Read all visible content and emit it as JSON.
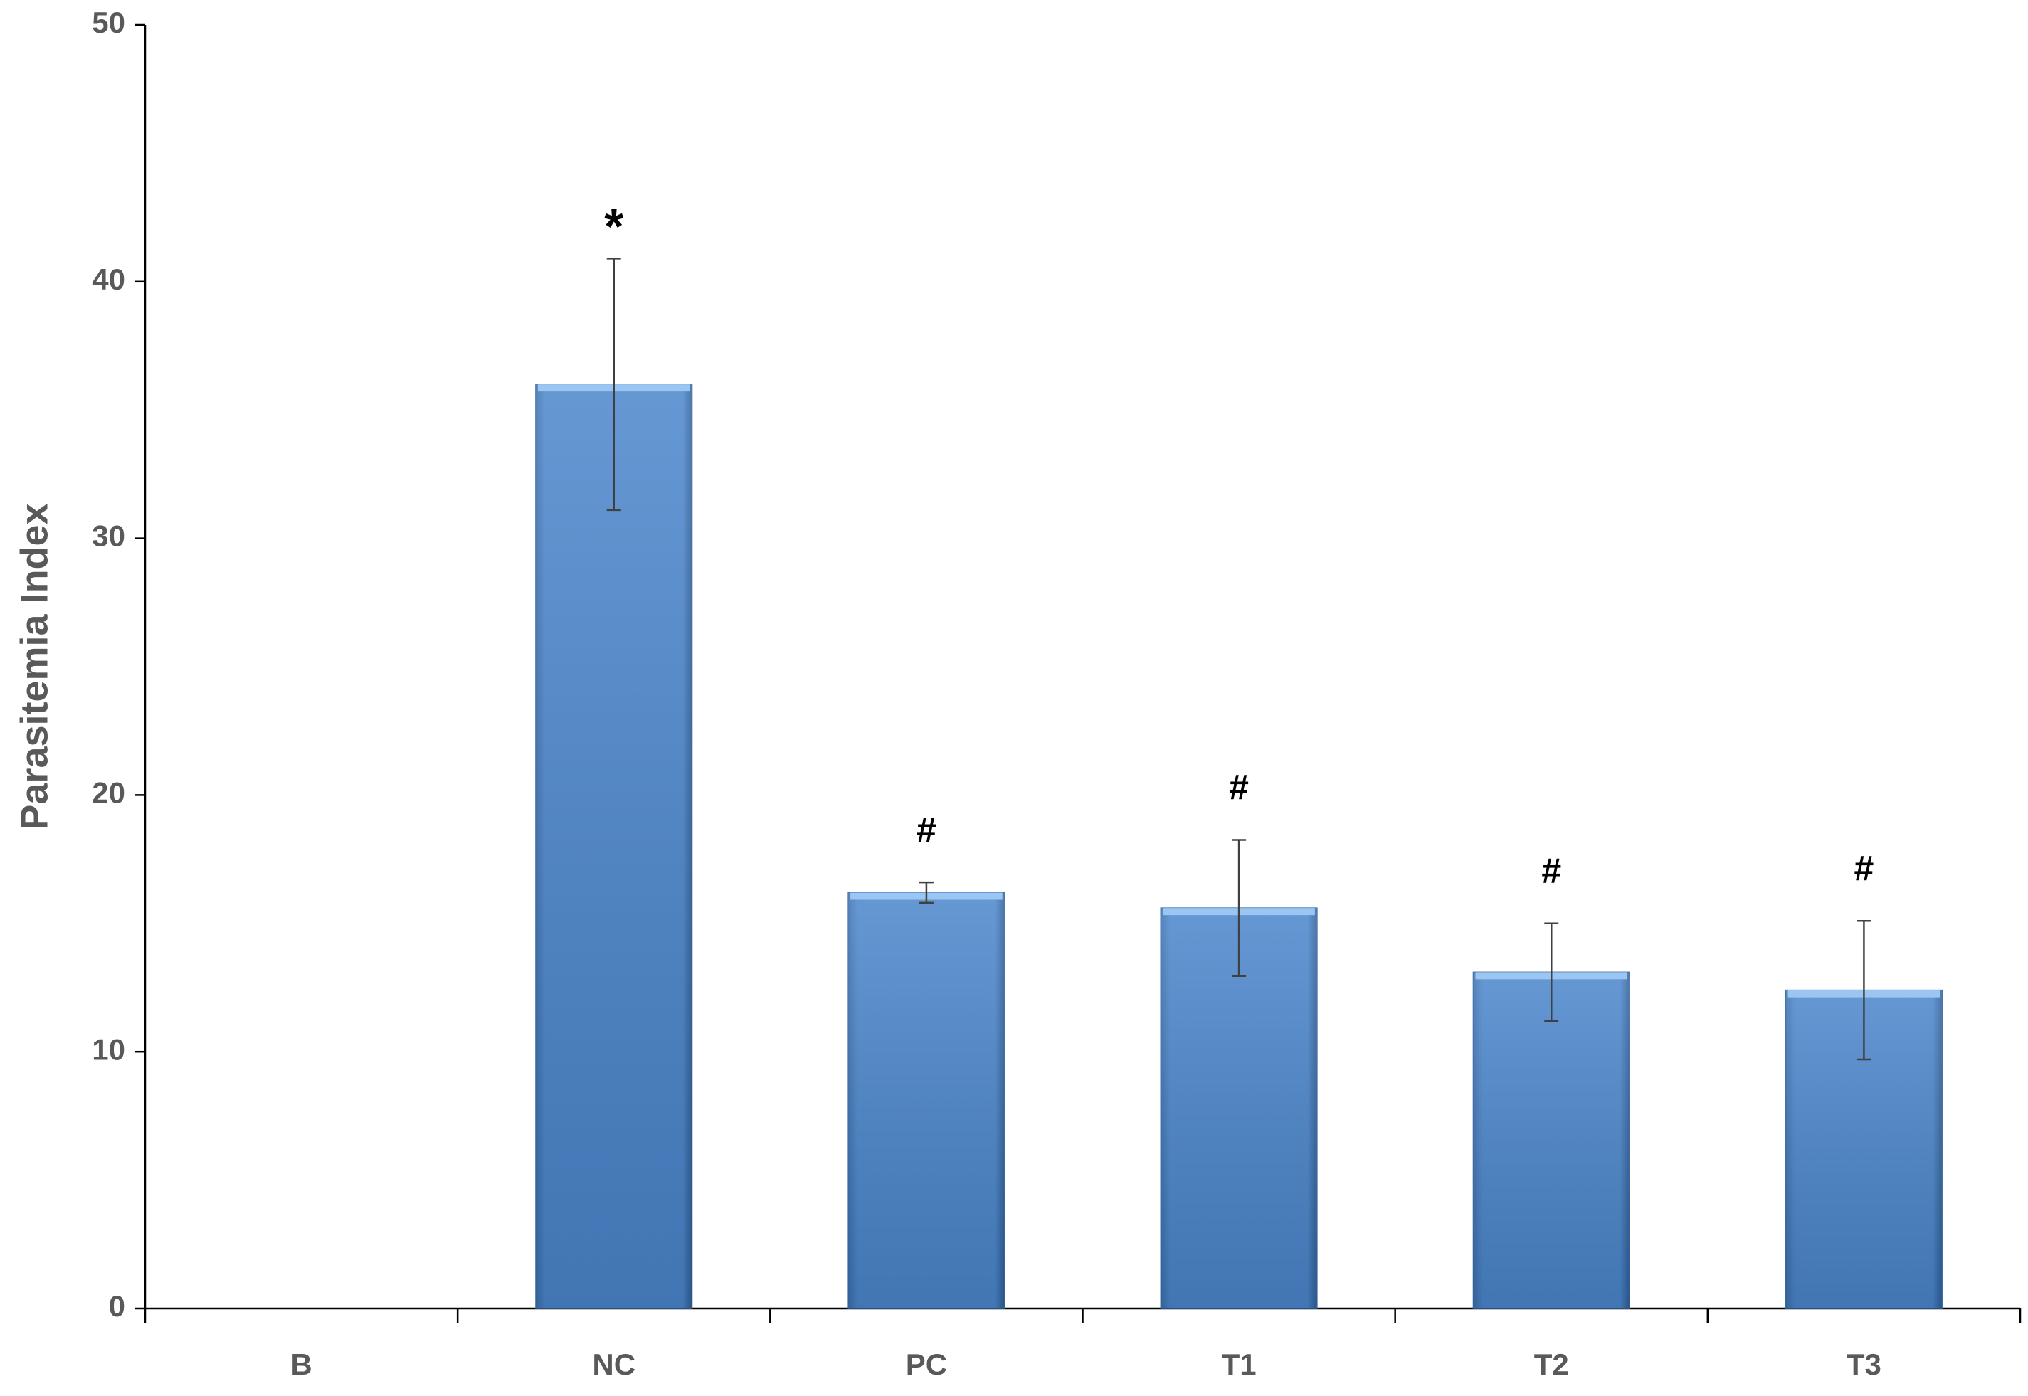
{
  "chart_data": {
    "type": "bar",
    "y_label": "Parasitemia Index",
    "categories": [
      "B",
      "NC",
      "PC",
      "T1",
      "T2",
      "T3"
    ],
    "values": [
      0,
      36,
      16.2,
      15.6,
      13.1,
      12.4
    ],
    "errors": [
      null,
      4.9,
      0.4,
      2.65,
      1.9,
      2.7
    ],
    "annotations": [
      null,
      "*",
      "#",
      "#",
      "#",
      "#"
    ],
    "color": "#4a86cc",
    "ylim": [
      0,
      50
    ],
    "yticks": [
      0,
      10,
      20,
      30,
      40,
      50
    ],
    "grid": false
  }
}
